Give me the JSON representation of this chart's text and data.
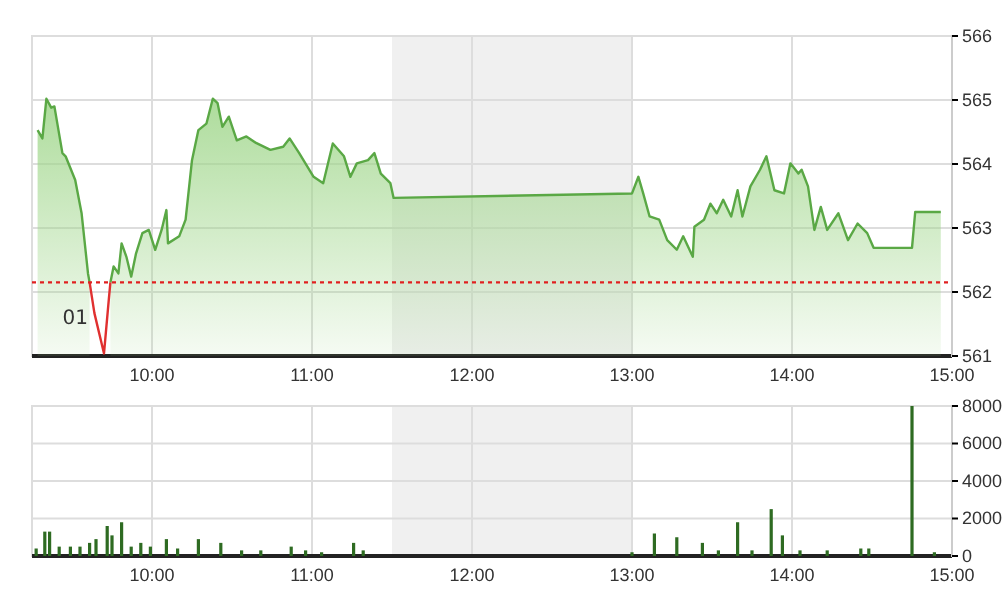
{
  "chart_data": [
    {
      "type": "area",
      "xlim": [
        9.25,
        15
      ],
      "ylim": [
        561,
        566
      ],
      "xticks": [
        {
          "value": 10,
          "label": "10:00"
        },
        {
          "value": 11,
          "label": "11:00"
        },
        {
          "value": 12,
          "label": "12:00"
        },
        {
          "value": 13,
          "label": "13:00"
        },
        {
          "value": 14,
          "label": "14:00"
        },
        {
          "value": 15,
          "label": "15:00"
        }
      ],
      "yticks": [
        561,
        562,
        563,
        564,
        565,
        566
      ],
      "grid": true,
      "series": [
        {
          "color": "#5aa845",
          "x": [
            9.285,
            9.315,
            9.34,
            9.37,
            9.39,
            9.44,
            9.46,
            9.52,
            9.56,
            9.6,
            9.61,
            9.64,
            9.74,
            9.76,
            9.79,
            9.81,
            9.84,
            9.87,
            9.9,
            9.94,
            9.98,
            10.02,
            10.06,
            10.09,
            10.1,
            10.17,
            10.21,
            10.25,
            10.29,
            10.34,
            10.38,
            10.41,
            10.44,
            10.48,
            10.53,
            10.59,
            10.65,
            10.74,
            10.82,
            10.86,
            10.92,
            11.01,
            11.07,
            11.13,
            11.2,
            11.24,
            11.28,
            11.35,
            11.39,
            11.43,
            11.49,
            11.51,
            13.0,
            13.04,
            13.07,
            13.11,
            13.17,
            13.22,
            13.28,
            13.32,
            13.38,
            13.39,
            13.45,
            13.49,
            13.53,
            13.57,
            13.62,
            13.66,
            13.69,
            13.74,
            13.8,
            13.84,
            13.89,
            13.95,
            13.99,
            14.04,
            14.06,
            14.1,
            14.14,
            14.18,
            14.22,
            14.29,
            14.35,
            14.41,
            14.47,
            14.51,
            14.75,
            14.77,
            14.93
          ],
          "values": [
            564.53,
            564.4,
            565.02,
            564.88,
            564.9,
            564.17,
            564.12,
            563.75,
            563.23,
            562.29,
            562.15,
            null,
            562.15,
            562.4,
            562.29,
            562.76,
            562.55,
            562.24,
            562.6,
            562.92,
            562.97,
            562.66,
            562.97,
            563.28,
            562.76,
            562.87,
            563.13,
            564.06,
            564.53,
            564.63,
            565.02,
            564.95,
            564.58,
            564.74,
            564.37,
            564.43,
            564.33,
            564.22,
            564.27,
            564.4,
            564.17,
            563.8,
            563.7,
            564.32,
            564.12,
            563.8,
            564.01,
            564.06,
            564.17,
            563.85,
            563.7,
            563.47,
            563.54,
            563.8,
            563.54,
            563.18,
            563.13,
            562.81,
            562.66,
            562.87,
            562.55,
            563.02,
            563.13,
            563.38,
            563.23,
            563.44,
            563.18,
            563.59,
            563.18,
            563.65,
            563.91,
            564.12,
            563.59,
            563.54,
            564.01,
            563.85,
            563.91,
            563.65,
            562.97,
            563.33,
            562.97,
            563.23,
            562.81,
            563.07,
            562.92,
            562.69,
            562.69,
            563.25,
            563.25
          ]
        },
        {
          "type": "line",
          "color": "#e03030",
          "x": [
            9.61,
            9.64,
            9.68,
            9.7,
            9.73,
            9.74
          ],
          "values": [
            562.15,
            561.67,
            561.25,
            561.04,
            561.88,
            562.15
          ]
        }
      ],
      "ref_lines": [
        {
          "axis": "y",
          "value": 562.15,
          "color": "#e02020",
          "line_style": "dotted"
        }
      ],
      "bands": [
        {
          "axis": "x",
          "from": 11.5,
          "to": 13,
          "color": "#f0f0f0"
        }
      ],
      "annotations": [
        {
          "text": "01",
          "x": 9.6,
          "y": 561.5
        }
      ]
    },
    {
      "type": "bar",
      "xlim": [
        9.25,
        15
      ],
      "ylim": [
        0,
        8000
      ],
      "xticks": [
        {
          "value": 10,
          "label": "10:00"
        },
        {
          "value": 11,
          "label": "11:00"
        },
        {
          "value": 12,
          "label": "12:00"
        },
        {
          "value": 13,
          "label": "13:00"
        },
        {
          "value": 14,
          "label": "14:00"
        },
        {
          "value": 15,
          "label": "15:00"
        }
      ],
      "yticks": [
        0,
        2000,
        4000,
        6000,
        8000
      ],
      "grid": true,
      "color": "#2e6b22",
      "x": [
        9.276,
        9.33,
        9.36,
        9.42,
        9.49,
        9.55,
        9.61,
        9.65,
        9.72,
        9.75,
        9.81,
        9.87,
        9.93,
        9.99,
        10.09,
        10.16,
        10.29,
        10.43,
        10.56,
        10.68,
        10.87,
        10.96,
        11.06,
        11.26,
        11.32,
        13.0,
        13.14,
        13.28,
        13.44,
        13.54,
        13.66,
        13.75,
        13.87,
        13.94,
        14.05,
        14.22,
        14.43,
        14.48,
        14.75,
        14.89
      ],
      "values": [
        400,
        1300,
        1300,
        500,
        500,
        500,
        700,
        900,
        1600,
        1100,
        1800,
        500,
        700,
        500,
        900,
        400,
        900,
        700,
        300,
        300,
        500,
        300,
        200,
        700,
        300,
        200,
        1200,
        1000,
        700,
        300,
        1800,
        300,
        2500,
        1100,
        300,
        300,
        400,
        400,
        8000,
        200
      ],
      "bands": [
        {
          "axis": "x",
          "from": 11.5,
          "to": 13,
          "color": "#f0f0f0"
        }
      ]
    }
  ]
}
